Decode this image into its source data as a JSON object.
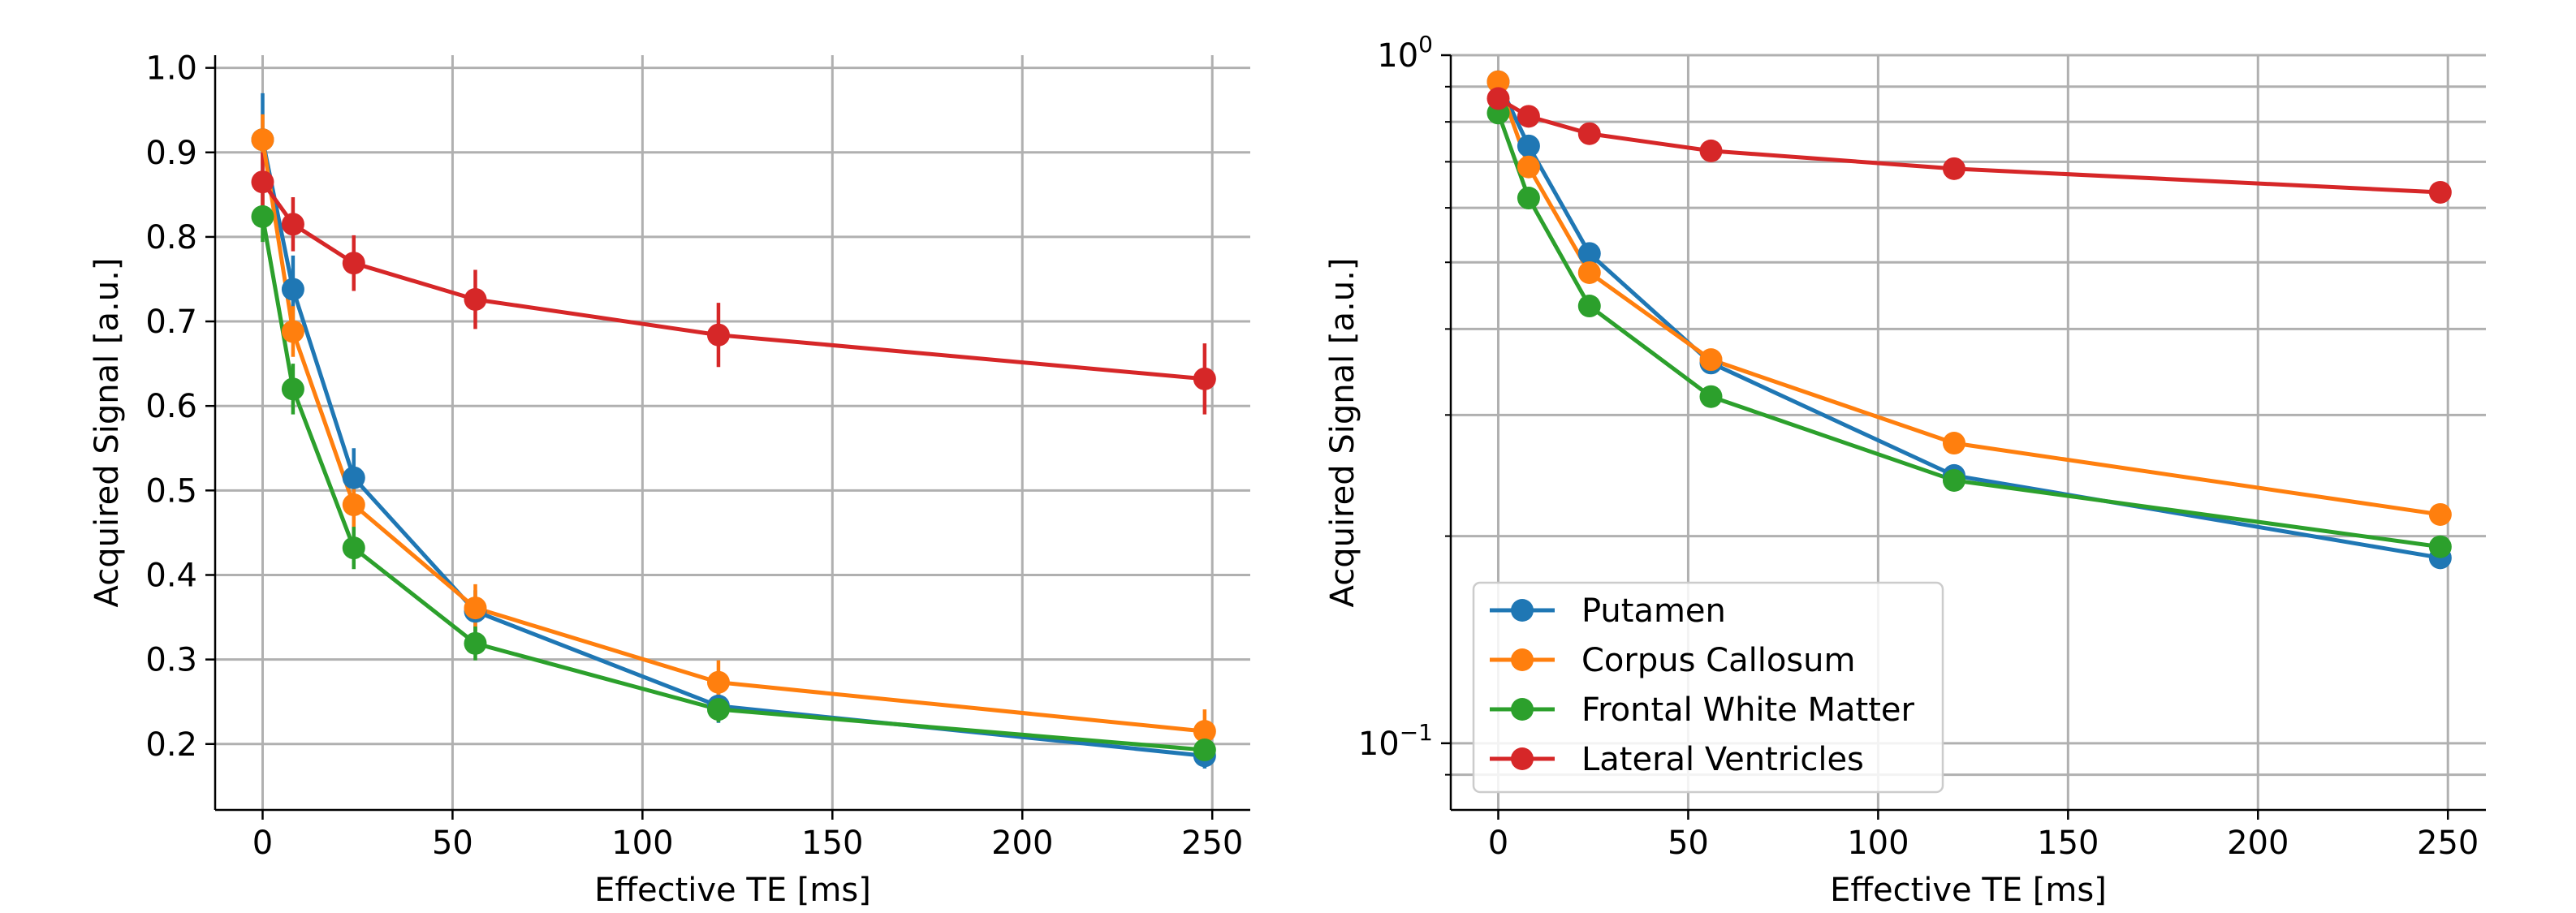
{
  "colors": {
    "putamen": "#1f77b4",
    "corpus_callosum": "#ff7f0e",
    "frontal_white_matter": "#2ca02c",
    "lateral_ventricles": "#d62728",
    "grid": "#b0b0b0",
    "axis": "#000000"
  },
  "chart_data": [
    {
      "type": "line",
      "panel": "left",
      "title": "",
      "xlabel": "Effective TE [ms]",
      "ylabel": "Acquired Signal [a.u.]",
      "xscale": "linear",
      "yscale": "linear",
      "xlim": [
        -12.5,
        260
      ],
      "ylim": [
        0.122,
        1.015
      ],
      "xticks": [
        0,
        50,
        100,
        150,
        200,
        250
      ],
      "xticklabels": [
        "0",
        "50",
        "100",
        "150",
        "200",
        "250"
      ],
      "yticks": [
        0.2,
        0.3,
        0.4,
        0.5,
        0.6,
        0.7,
        0.8,
        0.9,
        1.0
      ],
      "yticklabels": [
        "0.2",
        "0.3",
        "0.4",
        "0.5",
        "0.6",
        "0.7",
        "0.8",
        "0.9",
        "1.0"
      ],
      "grid": true,
      "legend": false,
      "x": [
        0,
        8,
        24,
        56,
        120,
        248
      ],
      "series": [
        {
          "name": "Putamen",
          "color_key": "putamen",
          "values": [
            0.915,
            0.738,
            0.515,
            0.357,
            0.245,
            0.186
          ],
          "errors": [
            0.055,
            0.04,
            0.035,
            0.025,
            0.02,
            0.015
          ]
        },
        {
          "name": "Corpus Callosum",
          "color_key": "corpus_callosum",
          "values": [
            0.915,
            0.688,
            0.483,
            0.361,
            0.273,
            0.215
          ],
          "errors": [
            0.03,
            0.03,
            0.03,
            0.028,
            0.026,
            0.026
          ]
        },
        {
          "name": "Frontal White Matter",
          "color_key": "frontal_white_matter",
          "values": [
            0.824,
            0.62,
            0.432,
            0.319,
            0.241,
            0.193
          ],
          "errors": [
            0.03,
            0.03,
            0.025,
            0.02,
            0.015,
            0.015
          ]
        },
        {
          "name": "Lateral Ventricles",
          "color_key": "lateral_ventricles",
          "values": [
            0.865,
            0.815,
            0.769,
            0.726,
            0.684,
            0.632
          ],
          "errors": [
            0.035,
            0.032,
            0.033,
            0.035,
            0.038,
            0.042
          ]
        }
      ]
    },
    {
      "type": "line",
      "panel": "right",
      "title": "",
      "xlabel": "Effective TE [ms]",
      "ylabel": "Acquired Signal [a.u.]",
      "xscale": "linear",
      "yscale": "log",
      "xlim": [
        -12.5,
        260
      ],
      "ylim": [
        0.08,
        1.0
      ],
      "xticks": [
        0,
        50,
        100,
        150,
        200,
        250
      ],
      "xticklabels": [
        "0",
        "50",
        "100",
        "150",
        "200",
        "250"
      ],
      "yticks_major": [
        0.1,
        1.0
      ],
      "yticklabels_major": [
        {
          "base": "10",
          "exp": "−1"
        },
        {
          "base": "10",
          "exp": "0"
        }
      ],
      "yticks_minor": [
        0.09,
        0.2,
        0.3,
        0.4,
        0.5,
        0.6,
        0.7,
        0.8,
        0.9
      ],
      "grid": true,
      "legend": true,
      "legend_position": "lower-left",
      "x": [
        0,
        8,
        24,
        56,
        120,
        248
      ],
      "series": [
        {
          "name": "Putamen",
          "color_key": "putamen",
          "values": [
            0.915,
            0.738,
            0.515,
            0.357,
            0.245,
            0.186
          ]
        },
        {
          "name": "Corpus Callosum",
          "color_key": "corpus_callosum",
          "values": [
            0.915,
            0.688,
            0.483,
            0.361,
            0.273,
            0.215
          ]
        },
        {
          "name": "Frontal White Matter",
          "color_key": "frontal_white_matter",
          "values": [
            0.824,
            0.62,
            0.432,
            0.319,
            0.241,
            0.193
          ]
        },
        {
          "name": "Lateral Ventricles",
          "color_key": "lateral_ventricles",
          "values": [
            0.865,
            0.815,
            0.769,
            0.726,
            0.684,
            0.632
          ]
        }
      ]
    }
  ]
}
